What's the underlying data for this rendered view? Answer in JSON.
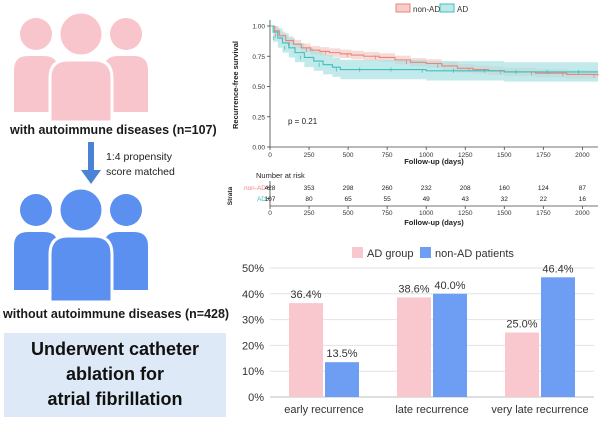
{
  "left_panel": {
    "group_top_label": "with autoimmune diseases (n=107)",
    "match_note_line1": "1:4 propensity",
    "match_note_line2": "score matched",
    "group_bottom_label": "without autoimmune diseases (n=428)",
    "cta_line1": "Underwent catheter",
    "cta_line2": "ablation for",
    "cta_line3": "atrial fibrillation",
    "colors": {
      "top_people": "#f8c5cc",
      "bottom_people": "#5b8ff0",
      "arrow": "#4a82d6",
      "cta_bg": "#dde9f6"
    }
  },
  "chart_data": [
    {
      "type": "line",
      "subtype": "kaplan-meier",
      "legend": [
        "non-AD",
        "AD"
      ],
      "ylabel": "Recurrence-free survival",
      "xlabel": "Follow-up (days)",
      "xlim": [
        0,
        2100
      ],
      "ylim": [
        0,
        1.0
      ],
      "x_ticks": [
        0,
        250,
        500,
        750,
        1000,
        1250,
        1500,
        1750,
        2000
      ],
      "y_ticks": [
        "0.00",
        "0.25",
        "0.50",
        "0.75",
        "1.00"
      ],
      "p_value_label": "p = 0.21",
      "series": [
        {
          "name": "non-AD",
          "color": "#e9857d",
          "x": [
            0,
            30,
            60,
            100,
            150,
            200,
            260,
            320,
            380,
            450,
            520,
            600,
            700,
            800,
            900,
            1000,
            1100,
            1200,
            1300,
            1400,
            1500,
            1600,
            1700,
            1800,
            1900,
            2000,
            2100
          ],
          "y": [
            1.0,
            0.96,
            0.92,
            0.88,
            0.85,
            0.82,
            0.8,
            0.79,
            0.78,
            0.77,
            0.76,
            0.75,
            0.74,
            0.72,
            0.7,
            0.69,
            0.67,
            0.65,
            0.64,
            0.63,
            0.62,
            0.62,
            0.61,
            0.61,
            0.6,
            0.6,
            0.59
          ]
        },
        {
          "name": "AD",
          "color": "#3fbfc0",
          "x": [
            0,
            20,
            50,
            80,
            120,
            160,
            220,
            280,
            340,
            400,
            450,
            520,
            600,
            700,
            800,
            900,
            1000,
            1100,
            1200,
            1300,
            1400,
            1500,
            1600,
            1700,
            1800,
            1900,
            2000,
            2100
          ],
          "y": [
            1.0,
            0.95,
            0.9,
            0.86,
            0.82,
            0.78,
            0.74,
            0.71,
            0.68,
            0.66,
            0.64,
            0.64,
            0.64,
            0.64,
            0.64,
            0.64,
            0.63,
            0.63,
            0.63,
            0.63,
            0.63,
            0.62,
            0.62,
            0.62,
            0.62,
            0.62,
            0.62,
            0.62
          ]
        }
      ],
      "risk_table": {
        "title": "Number at risk",
        "strata_label": "Strata",
        "xlabel": "Follow-up (days)",
        "x_ticks": [
          0,
          250,
          500,
          750,
          1000,
          1250,
          1500,
          1750,
          2000
        ],
        "rows": [
          {
            "name": "non-AD",
            "color": "#e9857d",
            "values": [
              428,
              353,
              298,
              260,
              232,
              208,
              160,
              124,
              87
            ]
          },
          {
            "name": "AD",
            "color": "#3fbfc0",
            "values": [
              107,
              80,
              65,
              55,
              49,
              43,
              32,
              22,
              16
            ]
          }
        ]
      }
    },
    {
      "type": "bar",
      "title": "",
      "categories": [
        "early recurrence",
        "late recurrence",
        "very late recurrence"
      ],
      "ylim": [
        0,
        50
      ],
      "y_ticks": [
        "0%",
        "10%",
        "20%",
        "30%",
        "40%",
        "50%"
      ],
      "series": [
        {
          "name": "AD group",
          "color": "#f9c8cf",
          "values": [
            36.4,
            38.6,
            25.0
          ],
          "labels": [
            "36.4%",
            "38.6%",
            "25.0%"
          ]
        },
        {
          "name": "non-AD patients",
          "color": "#6e9ef3",
          "values": [
            13.5,
            40.0,
            46.4
          ],
          "labels": [
            "13.5%",
            "40.0%",
            "46.4%"
          ]
        }
      ]
    }
  ]
}
